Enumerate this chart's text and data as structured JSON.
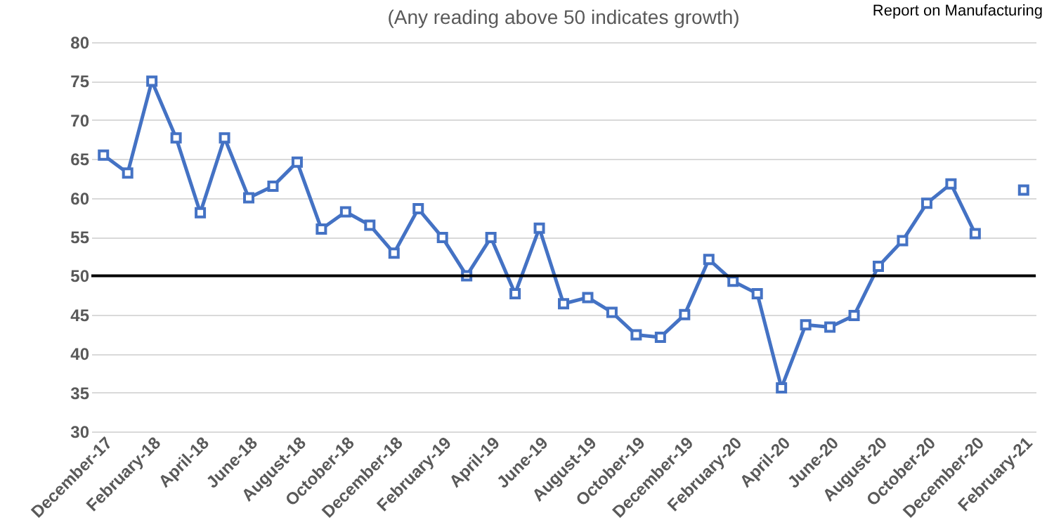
{
  "chart_data": {
    "type": "line",
    "subtitle": "(Any reading above 50 indicates growth)",
    "annotations": [
      "Report on Manufacturing"
    ],
    "categories": [
      "December-17",
      null,
      "February-18",
      null,
      "April-18",
      null,
      "June-18",
      null,
      "August-18",
      null,
      "October-18",
      null,
      "December-18",
      null,
      "February-19",
      null,
      "April-19",
      null,
      "June-19",
      null,
      "August-19",
      null,
      "October-19",
      null,
      "December-19",
      null,
      "February-20",
      null,
      "April-20",
      null,
      "June-20",
      null,
      "August-20",
      null,
      "October-20",
      null,
      "December-20",
      null,
      "February-21"
    ],
    "series": [
      {
        "color": "#4472c4",
        "values": [
          65.5,
          63.2,
          75.0,
          67.7,
          58.1,
          67.7,
          60.0,
          61.5,
          64.6,
          56.0,
          58.2,
          56.5,
          52.9,
          58.6,
          54.9,
          50.0,
          54.9,
          47.7,
          56.1,
          46.4,
          47.2,
          45.3,
          42.4,
          42.1,
          45.0,
          52.1,
          49.3,
          47.7,
          35.6,
          43.7,
          43.4,
          44.9,
          51.2,
          54.5,
          59.3,
          61.8,
          55.4,
          null,
          61.0
        ]
      }
    ],
    "ylim": [
      30,
      80
    ],
    "yticks": [
      30,
      35,
      40,
      45,
      50,
      55,
      60,
      65,
      70,
      75,
      80
    ],
    "grid": "y",
    "marker": "square",
    "line_style": "solid",
    "ref_lines": [
      {
        "axis": "y",
        "value": 50,
        "color": "#000000"
      }
    ]
  }
}
